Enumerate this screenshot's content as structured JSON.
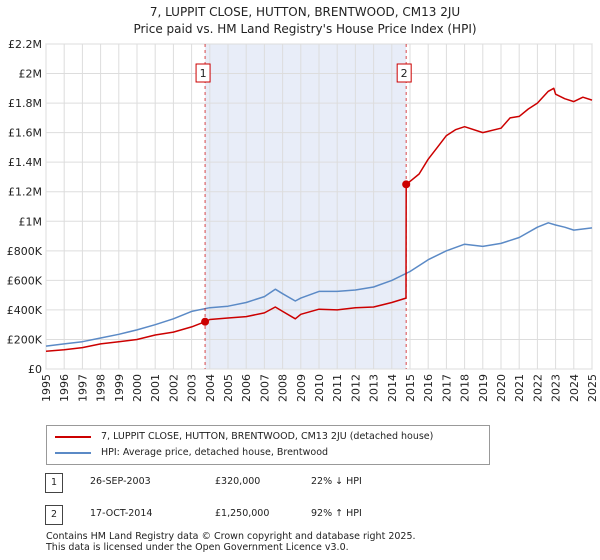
{
  "chart_data": {
    "type": "line",
    "title": "7, LUPPIT CLOSE, HUTTON, BRENTWOOD, CM13 2JU",
    "subtitle": "Price paid vs. HM Land Registry's House Price Index (HPI)",
    "xlim": [
      1995,
      2025
    ],
    "ylim": [
      0,
      2200000
    ],
    "x_ticks": [
      "1995",
      "1996",
      "1997",
      "1998",
      "1999",
      "2000",
      "2001",
      "2002",
      "2003",
      "2004",
      "2005",
      "2006",
      "2007",
      "2008",
      "2009",
      "2010",
      "2011",
      "2012",
      "2013",
      "2014",
      "2015",
      "2016",
      "2017",
      "2018",
      "2019",
      "2020",
      "2021",
      "2022",
      "2023",
      "2024",
      "2025"
    ],
    "y_ticks": [
      {
        "value": 0,
        "label": "£0"
      },
      {
        "value": 200000,
        "label": "£200K"
      },
      {
        "value": 400000,
        "label": "£400K"
      },
      {
        "value": 600000,
        "label": "£600K"
      },
      {
        "value": 800000,
        "label": "£800K"
      },
      {
        "value": 1000000,
        "label": "£1M"
      },
      {
        "value": 1200000,
        "label": "£1.2M"
      },
      {
        "value": 1400000,
        "label": "£1.4M"
      },
      {
        "value": 1600000,
        "label": "£1.6M"
      },
      {
        "value": 1800000,
        "label": "£1.8M"
      },
      {
        "value": 2000000,
        "label": "£2M"
      },
      {
        "value": 2200000,
        "label": "£2.2M"
      }
    ],
    "grid": true,
    "shaded_range": [
      2003.74,
      2014.79
    ],
    "series": [
      {
        "name": "7, LUPPIT CLOSE, HUTTON, BRENTWOOD, CM13 2JU (detached house)",
        "color": "#cc0000",
        "x": [
          1995,
          1996,
          1997,
          1998,
          1999,
          2000,
          2001,
          2002,
          2003,
          2003.74,
          2004,
          2005,
          2006,
          2007,
          2007.6,
          2008,
          2008.7,
          2009,
          2010,
          2011,
          2012,
          2013,
          2014,
          2014.78,
          2014.79,
          2015,
          2015.5,
          2016,
          2016.5,
          2017,
          2017.5,
          2018,
          2019,
          2020,
          2020.5,
          2021,
          2021.5,
          2022,
          2022.6,
          2022.9,
          2023,
          2023.5,
          2024,
          2024.5,
          2025
        ],
        "y": [
          120000,
          130000,
          145000,
          170000,
          185000,
          200000,
          230000,
          250000,
          285000,
          320000,
          335000,
          345000,
          355000,
          380000,
          420000,
          390000,
          340000,
          370000,
          405000,
          400000,
          415000,
          420000,
          450000,
          480000,
          1250000,
          1270000,
          1320000,
          1420000,
          1500000,
          1580000,
          1620000,
          1640000,
          1600000,
          1630000,
          1700000,
          1710000,
          1760000,
          1800000,
          1880000,
          1900000,
          1860000,
          1830000,
          1810000,
          1840000,
          1820000
        ]
      },
      {
        "name": "HPI: Average price, detached house, Brentwood",
        "color": "#5b8ac6",
        "x": [
          1995,
          1996,
          1997,
          1998,
          1999,
          2000,
          2001,
          2002,
          2003,
          2004,
          2005,
          2006,
          2007,
          2007.6,
          2008,
          2008.7,
          2009,
          2010,
          2011,
          2012,
          2013,
          2014,
          2015,
          2016,
          2017,
          2018,
          2019,
          2020,
          2021,
          2022,
          2022.6,
          2023,
          2023.5,
          2024,
          2025
        ],
        "y": [
          155000,
          170000,
          185000,
          210000,
          235000,
          265000,
          300000,
          340000,
          390000,
          415000,
          425000,
          450000,
          490000,
          540000,
          510000,
          460000,
          480000,
          525000,
          525000,
          535000,
          555000,
          600000,
          660000,
          740000,
          800000,
          845000,
          830000,
          850000,
          890000,
          960000,
          990000,
          975000,
          960000,
          940000,
          955000
        ]
      }
    ],
    "sales": [
      {
        "marker": "1",
        "x": 2003.74,
        "y": 320000
      },
      {
        "marker": "2",
        "x": 2014.79,
        "y": 1250000
      }
    ]
  },
  "legend": {
    "items": [
      {
        "label": "7, LUPPIT CLOSE, HUTTON, BRENTWOOD, CM13 2JU (detached house)",
        "color": "#cc0000"
      },
      {
        "label": "HPI: Average price, detached house, Brentwood",
        "color": "#5b8ac6"
      }
    ]
  },
  "transactions": [
    {
      "marker": "1",
      "date": "26-SEP-2003",
      "price": "£320,000",
      "hpi": "22% ↓ HPI"
    },
    {
      "marker": "2",
      "date": "17-OCT-2014",
      "price": "£1,250,000",
      "hpi": "92% ↑ HPI"
    }
  ],
  "footer": {
    "line1": "Contains HM Land Registry data © Crown copyright and database right 2025.",
    "line2": "This data is licensed under the Open Government Licence v3.0."
  }
}
